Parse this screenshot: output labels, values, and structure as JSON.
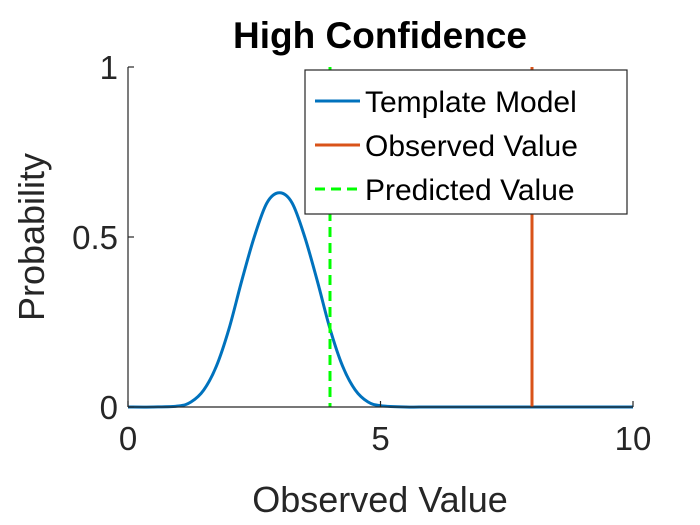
{
  "chart_data": {
    "type": "line",
    "title": "High Confidence",
    "xlabel": "Observed Value",
    "ylabel": "Probability",
    "xlim": [
      0,
      10
    ],
    "ylim": [
      0,
      1
    ],
    "xticks": [
      0,
      5,
      10
    ],
    "xtick_labels": [
      "0",
      "5",
      "10"
    ],
    "yticks": [
      0,
      0.5,
      1
    ],
    "ytick_labels": [
      "0",
      "0.5",
      "1"
    ],
    "grid": false,
    "legend_position": "top-right",
    "series": [
      {
        "name": "Template Model",
        "kind": "curve",
        "color": "#0072BD",
        "line_style": "solid",
        "x": [
          0,
          0.5,
          1,
          1.25,
          1.5,
          1.75,
          2,
          2.25,
          2.5,
          2.75,
          3,
          3.25,
          3.5,
          3.75,
          4,
          4.25,
          4.5,
          4.75,
          5,
          5.5,
          6,
          7,
          8,
          9,
          10
        ],
        "y": [
          0,
          0,
          0.003,
          0.015,
          0.05,
          0.12,
          0.23,
          0.37,
          0.5,
          0.6,
          0.63,
          0.6,
          0.5,
          0.37,
          0.23,
          0.12,
          0.05,
          0.015,
          0.004,
          0,
          0,
          0,
          0,
          0,
          0
        ]
      },
      {
        "name": "Observed Value",
        "kind": "vline",
        "color": "#D95319",
        "line_style": "solid",
        "x": 8
      },
      {
        "name": "Predicted Value",
        "kind": "vline",
        "color": "#00FF00",
        "line_style": "dashed",
        "x": 4
      }
    ]
  }
}
